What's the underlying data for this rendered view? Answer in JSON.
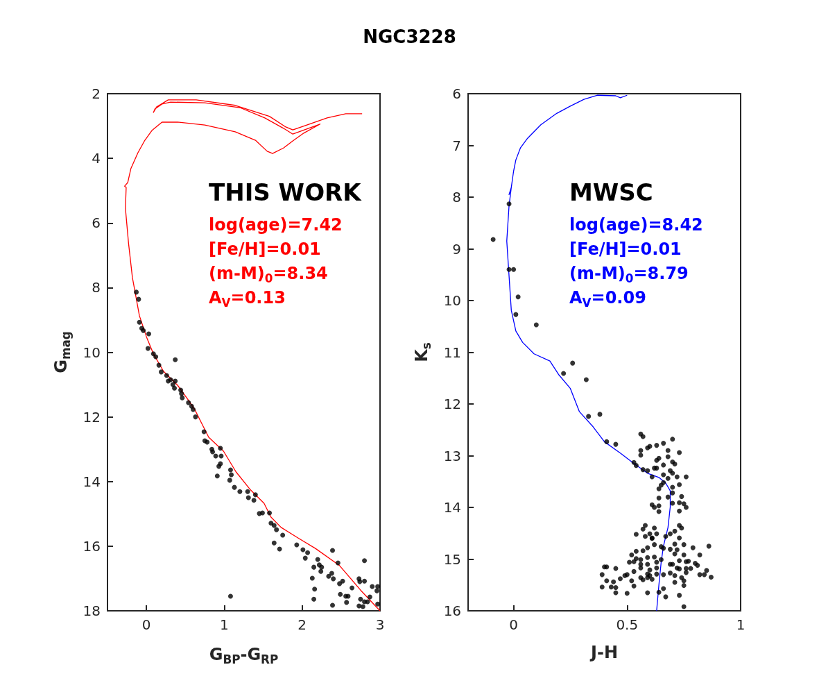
{
  "chart_data": [
    {
      "type": "scatter",
      "title": "NGC3228",
      "xlabel": "G$_{BP}$-G$_{RP}$",
      "ylabel": "G$_{mag}$",
      "xlim": [
        -0.5,
        3
      ],
      "ylim": [
        18,
        2
      ],
      "xticks": [
        0,
        1,
        2,
        3
      ],
      "yticks": [
        2,
        4,
        6,
        8,
        10,
        12,
        14,
        16,
        18
      ],
      "annotations": [
        "THIS WORK",
        "log(age)=7.42",
        "[Fe/H]=0.01",
        "(m-M)$_{0}$=8.34",
        "A$_{V}$=0.13"
      ],
      "series": [
        {
          "type": "line",
          "color": "#ff0000",
          "marker": "none",
          "x": [
            3.0,
            2.75,
            2.48,
            2.17,
            1.95,
            1.73,
            1.6,
            1.51,
            1.33,
            1.15,
            0.99,
            0.8,
            0.71,
            0.62,
            0.53,
            0.4,
            0.22,
            0.09,
            0,
            -0.09,
            -0.18,
            -0.23,
            -0.27,
            -0.26,
            -0.28,
            -0.24,
            -0.2,
            -0.11,
            -0.02,
            0.07,
            0.2,
            0.4,
            0.75,
            1.14,
            1.4,
            1.55,
            1.62,
            1.76,
            1.88,
            2.02,
            2.23,
            1.88,
            1.76,
            1.52,
            1.2,
            0.75,
            0.31,
            0.2,
            0.11,
            0.09,
            0.13,
            0.28,
            0.64,
            1.14,
            1.58,
            1.79,
            1.88,
            2.06,
            2.32,
            2.56,
            2.77
          ],
          "values": [
            18,
            17.36,
            16.6,
            16.07,
            15.75,
            15.42,
            15.1,
            14.67,
            14.24,
            13.7,
            13.06,
            12.63,
            12.2,
            11.77,
            11.45,
            11.02,
            10.59,
            10.05,
            9.52,
            8.87,
            7.69,
            6.62,
            5.54,
            4.9,
            4.86,
            4.75,
            4.32,
            3.83,
            3.44,
            3.14,
            2.88,
            2.88,
            2.97,
            3.18,
            3.44,
            3.78,
            3.85,
            3.68,
            3.46,
            3.22,
            2.94,
            3.25,
            3.07,
            2.75,
            2.43,
            2.28,
            2.26,
            2.32,
            2.47,
            2.58,
            2.41,
            2.19,
            2.19,
            2.36,
            2.7,
            3.03,
            3.12,
            2.97,
            2.75,
            2.62,
            2.62
          ]
        },
        {
          "color": "#000000",
          "marker": "circle",
          "x": [
            -0.13,
            -0.1,
            -0.09,
            -0.06,
            -0.04,
            0.03,
            0.02,
            0.09,
            0.12,
            0.37,
            0.16,
            0.19,
            0.26,
            0.28,
            0.31,
            0.34,
            0.37,
            0.36,
            0.44,
            0.45,
            0.46,
            0.54,
            0.58,
            0.6,
            0.63,
            0.74,
            0.75,
            0.78,
            0.84,
            0.85,
            0.95,
            0.89,
            0.96,
            0.95,
            0.93,
            0.91,
            1.08,
            1.09,
            1.07,
            1.13,
            1.2,
            1.3,
            1.31,
            1.4,
            1.38,
            1.45,
            1.49,
            1.58,
            1.6,
            1.64,
            1.67,
            1.75,
            1.64,
            1.71,
            1.93,
            2.01,
            2.07,
            2.04,
            2.39,
            2.2,
            2.15,
            2.22,
            2.25,
            2.24,
            2.13,
            2.16,
            2.15,
            2.46,
            2.38,
            2.34,
            2.4,
            2.48,
            2.52,
            2.64,
            2.49,
            2.56,
            2.59,
            2.57,
            2.39,
            2.8,
            2.73,
            2.74,
            2.8,
            2.9,
            2.97,
            2.96,
            2.87,
            2.75,
            2.8,
            2.84,
            2.73,
            2.78,
            2.97,
            1.08
          ],
          "values": [
            8.14,
            8.36,
            9.07,
            9.26,
            9.33,
            9.43,
            9.88,
            10.05,
            10.14,
            10.23,
            10.4,
            10.61,
            10.72,
            10.89,
            10.85,
            11.0,
            10.89,
            11.11,
            11.17,
            11.28,
            11.41,
            11.56,
            11.67,
            11.77,
            12.0,
            12.46,
            12.74,
            12.78,
            13.0,
            13.08,
            12.97,
            13.21,
            13.21,
            13.45,
            13.53,
            13.83,
            13.64,
            13.79,
            13.96,
            14.18,
            14.31,
            14.31,
            14.5,
            14.41,
            14.58,
            14.99,
            14.97,
            14.97,
            15.29,
            15.36,
            15.49,
            15.66,
            15.9,
            16.09,
            15.96,
            16.11,
            16.2,
            16.37,
            16.13,
            16.41,
            16.65,
            16.58,
            16.65,
            16.78,
            16.99,
            17.33,
            17.64,
            16.52,
            16.84,
            16.93,
            17.01,
            17.16,
            17.08,
            17.29,
            17.49,
            17.55,
            17.55,
            17.74,
            17.83,
            16.45,
            17.01,
            17.1,
            17.08,
            17.25,
            17.25,
            17.38,
            17.57,
            17.64,
            17.72,
            17.72,
            17.85,
            17.87,
            17.79,
            17.55
          ]
        }
      ]
    },
    {
      "type": "scatter",
      "xlabel": "J-H",
      "ylabel": "K$_{s}$",
      "xlim": [
        -0.2,
        1
      ],
      "ylim": [
        16,
        6
      ],
      "xticks": [
        0,
        0.5,
        1
      ],
      "yticks": [
        6,
        7,
        8,
        9,
        10,
        11,
        12,
        13,
        14,
        15,
        16
      ],
      "annotations": [
        "MWSC",
        "log(age)=8.42",
        "[Fe/H]=0.01",
        "(m-M)$_{0}$=8.79",
        "A$_{V}$=0.09"
      ],
      "series": [
        {
          "type": "line",
          "color": "#0000ff",
          "marker": "none",
          "x": [
            0.5,
            0.47,
            0.45,
            0.37,
            0.31,
            0.25,
            0.19,
            0.12,
            0.06,
            0.03,
            0.01,
            0,
            -0.01,
            -0.02,
            -0.01,
            -0.02,
            -0.03,
            -0.02,
            -0.01,
            0.01,
            0.04,
            0.09,
            0.16,
            0.2,
            0.25,
            0.29,
            0.35,
            0.4,
            0.47,
            0.53,
            0.59,
            0.64,
            0.67,
            0.69,
            0.69,
            0.68,
            0.66,
            0.65,
            0.64,
            0.63
          ],
          "values": [
            6.03,
            6.08,
            6.04,
            6.03,
            6.11,
            6.24,
            6.38,
            6.6,
            6.87,
            7.05,
            7.28,
            7.5,
            7.81,
            7.95,
            7.81,
            8.17,
            8.85,
            9.52,
            10.19,
            10.59,
            10.81,
            11.03,
            11.17,
            11.44,
            11.7,
            12.15,
            12.44,
            12.73,
            12.95,
            13.15,
            13.34,
            13.42,
            13.53,
            13.68,
            13.99,
            14.39,
            14.75,
            15.06,
            15.5,
            16.0
          ]
        },
        {
          "color": "#000000",
          "marker": "circle",
          "x": [
            -0.02,
            -0.09,
            -0.02,
            0.0,
            0.02,
            0.01,
            0.1,
            0.26,
            0.22,
            0.32,
            0.33,
            0.38,
            0.4,
            0.39,
            0.39,
            0.56,
            0.57,
            0.41,
            0.45,
            0.7,
            0.66,
            0.59,
            0.6,
            0.63,
            0.56,
            0.56,
            0.68,
            0.73,
            0.68,
            0.64,
            0.63,
            0.7,
            0.71,
            0.53,
            0.54,
            0.66,
            0.62,
            0.63,
            0.57,
            0.59,
            0.69,
            0.7,
            0.66,
            0.72,
            0.76,
            0.61,
            0.68,
            0.66,
            0.65,
            0.73,
            0.7,
            0.64,
            0.7,
            0.74,
            0.64,
            0.68,
            0.7,
            0.73,
            0.75,
            0.61,
            0.62,
            0.64,
            0.76,
            0.73,
            0.64,
            0.73,
            0.74,
            0.58,
            0.57,
            0.62,
            0.71,
            0.69,
            0.54,
            0.58,
            0.6,
            0.63,
            0.61,
            0.61,
            0.67,
            0.73,
            0.71,
            0.75,
            0.86,
            0.79,
            0.62,
            0.65,
            0.59,
            0.57,
            0.54,
            0.69,
            0.72,
            0.71,
            0.66,
            0.52,
            0.75,
            0.82,
            0.54,
            0.56,
            0.59,
            0.62,
            0.65,
            0.51,
            0.53,
            0.73,
            0.76,
            0.77,
            0.8,
            0.81,
            0.41,
            0.45,
            0.56,
            0.59,
            0.63,
            0.69,
            0.7,
            0.72,
            0.73,
            0.76,
            0.78,
            0.56,
            0.53,
            0.6,
            0.63,
            0.76,
            0.85,
            0.84,
            0.82,
            0.87,
            0.5,
            0.49,
            0.59,
            0.6,
            0.63,
            0.66,
            0.69,
            0.71,
            0.74,
            0.47,
            0.56,
            0.59,
            0.61,
            0.41,
            0.44,
            0.52,
            0.57,
            0.75,
            0.43,
            0.45,
            0.53,
            0.71,
            0.75,
            0.66,
            0.45,
            0.5,
            0.59,
            0.64,
            0.67,
            0.73,
            0.75
          ],
          "values": [
            8.13,
            8.82,
            9.4,
            9.4,
            9.93,
            10.27,
            10.47,
            11.21,
            11.41,
            11.53,
            12.24,
            12.2,
            15.15,
            15.3,
            15.54,
            12.58,
            12.63,
            12.73,
            12.78,
            12.68,
            12.76,
            12.85,
            12.82,
            12.8,
            12.9,
            12.99,
            12.9,
            12.94,
            13.02,
            13.05,
            13.09,
            13.12,
            13.16,
            13.13,
            13.19,
            13.18,
            13.24,
            13.24,
            13.27,
            13.29,
            13.29,
            13.34,
            13.37,
            13.41,
            13.41,
            13.41,
            13.44,
            13.52,
            13.57,
            13.56,
            13.61,
            13.64,
            13.72,
            13.79,
            13.82,
            13.8,
            13.92,
            13.91,
            13.93,
            13.95,
            14.0,
            13.97,
            14.0,
            14.07,
            14.08,
            14.35,
            14.4,
            14.35,
            14.42,
            14.4,
            14.46,
            14.51,
            14.52,
            14.56,
            14.51,
            14.51,
            14.6,
            14.59,
            14.56,
            14.59,
            14.71,
            14.72,
            14.75,
            14.78,
            14.72,
            14.76,
            14.78,
            14.84,
            14.85,
            14.81,
            14.82,
            14.9,
            14.79,
            14.92,
            14.92,
            14.92,
            14.99,
            15.01,
            14.97,
            14.96,
            15.01,
            15.06,
            15.05,
            15.03,
            15.05,
            15.04,
            15.08,
            15.12,
            15.15,
            15.18,
            15.1,
            15.1,
            15.06,
            15.1,
            15.1,
            15.17,
            15.19,
            15.18,
            15.18,
            15.17,
            15.24,
            15.21,
            15.17,
            15.26,
            15.22,
            15.3,
            15.3,
            15.35,
            15.3,
            15.32,
            15.29,
            15.32,
            15.29,
            15.3,
            15.27,
            15.32,
            15.36,
            15.38,
            15.36,
            15.36,
            15.39,
            15.42,
            15.44,
            15.42,
            15.4,
            15.42,
            15.54,
            15.55,
            15.52,
            15.45,
            15.51,
            15.57,
            15.65,
            15.66,
            15.65,
            15.64,
            15.73,
            15.7,
            15.92
          ]
        }
      ]
    }
  ]
}
